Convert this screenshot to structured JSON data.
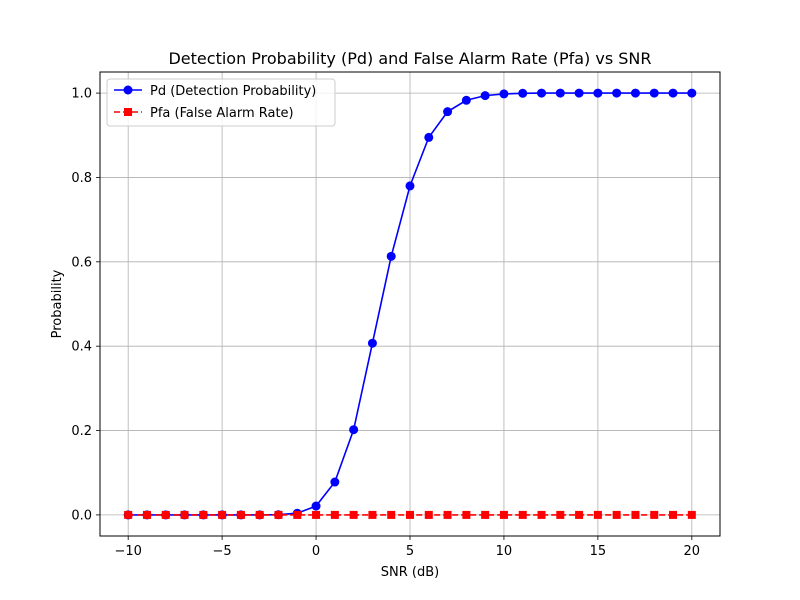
{
  "chart_data": {
    "type": "line",
    "title": "Detection Probability (Pd) and False Alarm Rate (Pfa) vs SNR",
    "xlabel": "SNR (dB)",
    "ylabel": "Probability",
    "xlim": [
      -11.5,
      21.5
    ],
    "ylim": [
      -0.05,
      1.05
    ],
    "xticks": [
      -10,
      -5,
      0,
      5,
      10,
      15,
      20
    ],
    "xtick_labels": [
      "−10",
      "−5",
      "0",
      "5",
      "10",
      "15",
      "20"
    ],
    "yticks": [
      0.0,
      0.2,
      0.4,
      0.6,
      0.8,
      1.0
    ],
    "ytick_labels": [
      "0.0",
      "0.2",
      "0.4",
      "0.6",
      "0.8",
      "1.0"
    ],
    "grid": true,
    "legend_position": "top-left",
    "x": [
      -10,
      -9,
      -8,
      -7,
      -6,
      -5,
      -4,
      -3,
      -2,
      -1,
      0,
      1,
      2,
      3,
      4,
      5,
      6,
      7,
      8,
      9,
      10,
      11,
      12,
      13,
      14,
      15,
      16,
      17,
      18,
      19,
      20
    ],
    "series": [
      {
        "name": "Pd (Detection Probability)",
        "color": "#0000ff",
        "marker": "circle",
        "line_style": "solid",
        "values": [
          0,
          0,
          0,
          0,
          0,
          0,
          0,
          0,
          0.0005,
          0.004,
          0.021,
          0.078,
          0.202,
          0.407,
          0.613,
          0.78,
          0.895,
          0.956,
          0.983,
          0.994,
          0.998,
          0.9995,
          1.0,
          1.0,
          1.0,
          1.0,
          1.0,
          1.0,
          1.0,
          1.0,
          1.0
        ]
      },
      {
        "name": "Pfa (False Alarm Rate)",
        "color": "#ff0000",
        "marker": "square",
        "line_style": "dashed",
        "values": [
          0,
          0,
          0,
          0,
          0,
          0,
          0,
          0,
          0,
          0,
          0,
          0,
          0,
          0,
          0,
          0,
          0,
          0,
          0,
          0,
          0,
          0,
          0,
          0,
          0,
          0,
          0,
          0,
          0,
          0,
          0
        ]
      }
    ]
  }
}
